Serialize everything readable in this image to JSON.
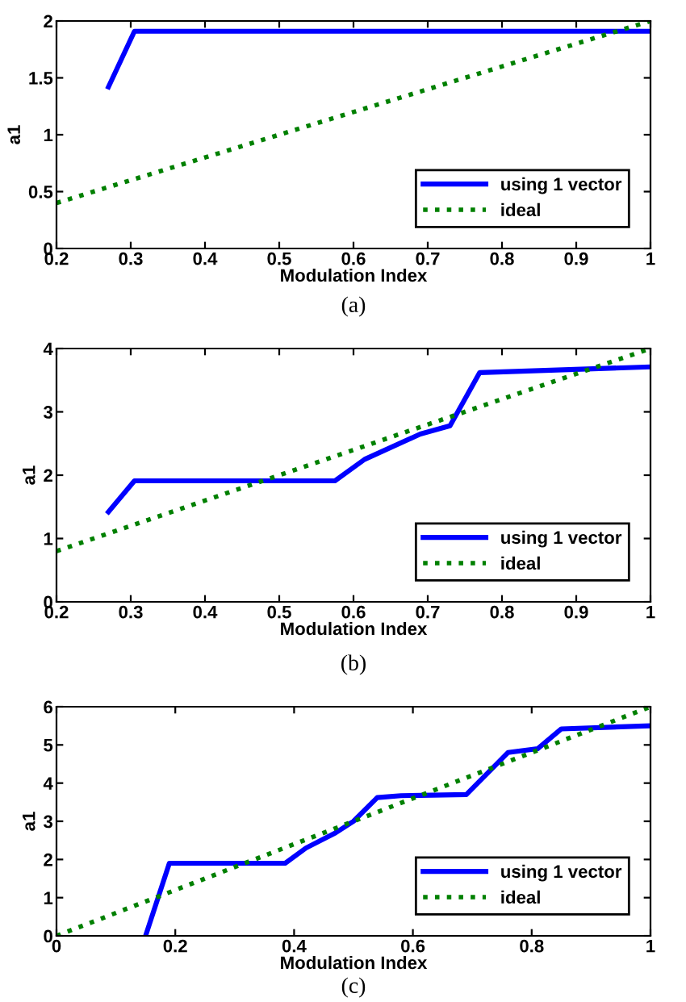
{
  "chart_data": [
    {
      "type": "line",
      "xlabel": "Modulation Index",
      "ylabel": "a1",
      "annotations": [
        "(a)"
      ],
      "xlim": [
        0.2,
        1
      ],
      "xticks": [
        0.2,
        0.3,
        0.4,
        0.5,
        0.6,
        0.7,
        0.8,
        0.9,
        1
      ],
      "ylim": [
        0,
        2
      ],
      "yticks": [
        0,
        0.5,
        1,
        1.5,
        2
      ],
      "legend": "bottom right",
      "grid": false,
      "series": [
        {
          "name": "using 1 vector",
          "color": "#0000ff",
          "line_style": "solid",
          "x": [
            0.27,
            0.305,
            1
          ],
          "values": [
            1.42,
            1.91,
            1.91
          ]
        },
        {
          "name": "ideal",
          "color": "#008000",
          "line_style": "dotted",
          "x": [
            0.2,
            1
          ],
          "values": [
            0.4,
            2
          ]
        }
      ]
    },
    {
      "type": "line",
      "xlabel": "Modulation Index",
      "ylabel": "a1",
      "annotations": [
        "(b)"
      ],
      "xlim": [
        0.2,
        1
      ],
      "xticks": [
        0.2,
        0.3,
        0.4,
        0.5,
        0.6,
        0.7,
        0.8,
        0.9,
        1
      ],
      "ylim": [
        0,
        4
      ],
      "yticks": [
        0,
        1,
        2,
        3,
        4
      ],
      "legend": "bottom right",
      "grid": false,
      "series": [
        {
          "name": "using 1 vector",
          "color": "#0000ff",
          "line_style": "solid",
          "x": [
            0.27,
            0.305,
            0.575,
            0.615,
            0.69,
            0.73,
            0.77,
            1
          ],
          "values": [
            1.42,
            1.91,
            1.91,
            2.25,
            2.65,
            2.78,
            3.62,
            3.71
          ]
        },
        {
          "name": "ideal",
          "color": "#008000",
          "line_style": "dotted",
          "x": [
            0.2,
            1
          ],
          "values": [
            0.8,
            4
          ]
        }
      ]
    },
    {
      "type": "line",
      "xlabel": "Modulation Index",
      "ylabel": "a1",
      "annotations": [
        "(c)"
      ],
      "xlim": [
        0,
        1
      ],
      "xticks": [
        0,
        0.2,
        0.4,
        0.6,
        0.8,
        1
      ],
      "ylim": [
        0,
        6
      ],
      "yticks": [
        0,
        1,
        2,
        3,
        4,
        5,
        6
      ],
      "legend": "bottom right",
      "grid": false,
      "series": [
        {
          "name": "using 1 vector",
          "color": "#0000ff",
          "line_style": "solid",
          "x": [
            0.15,
            0.19,
            0.385,
            0.42,
            0.47,
            0.5,
            0.54,
            0.58,
            0.69,
            0.76,
            0.81,
            0.85,
            1
          ],
          "values": [
            0,
            1.9,
            1.9,
            2.3,
            2.7,
            3.0,
            3.62,
            3.67,
            3.7,
            4.8,
            4.9,
            5.42,
            5.5
          ]
        },
        {
          "name": "ideal",
          "color": "#008000",
          "line_style": "dotted",
          "x": [
            0,
            1
          ],
          "values": [
            0,
            6
          ]
        }
      ]
    }
  ]
}
